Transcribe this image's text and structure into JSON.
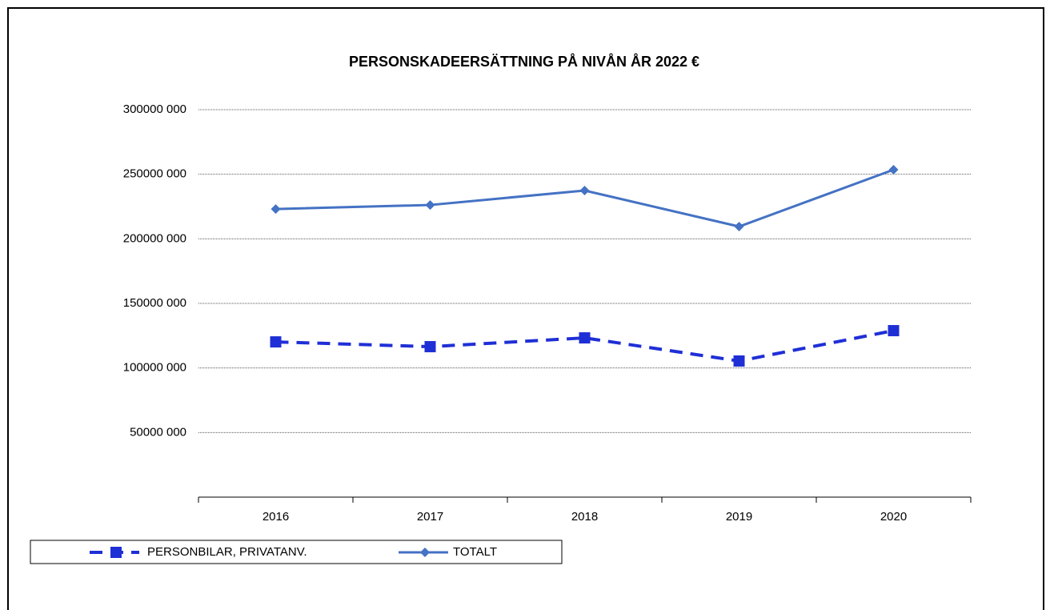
{
  "chart_data": {
    "type": "line",
    "title": "PERSONSKADEERSÄTTNING PÅ NIVÅN ÅR 2022 €",
    "categories": [
      "2016",
      "2017",
      "2018",
      "2019",
      "2020"
    ],
    "series": [
      {
        "name": "PERSONBILAR, PRIVATANV.",
        "color": "#1f2fd6",
        "dash": true,
        "marker": "square",
        "values": [
          120200000,
          116500000,
          123300000,
          105400000,
          128900000
        ]
      },
      {
        "name": "TOTALT",
        "color": "#4472c4",
        "dash": false,
        "marker": "diamond",
        "values": [
          223100000,
          226200000,
          237400000,
          209500000,
          253500000
        ]
      }
    ],
    "ylim": [
      0,
      300000000
    ],
    "yticks": [
      {
        "value": 50000000,
        "label": "50000 000"
      },
      {
        "value": 100000000,
        "label": "100000 000"
      },
      {
        "value": 150000000,
        "label": "150000 000"
      },
      {
        "value": 200000000,
        "label": "200000 000"
      },
      {
        "value": 250000000,
        "label": "250000 000"
      },
      {
        "value": 300000000,
        "label": "300000 000"
      }
    ],
    "grid": true,
    "legend": "bottom-left"
  }
}
